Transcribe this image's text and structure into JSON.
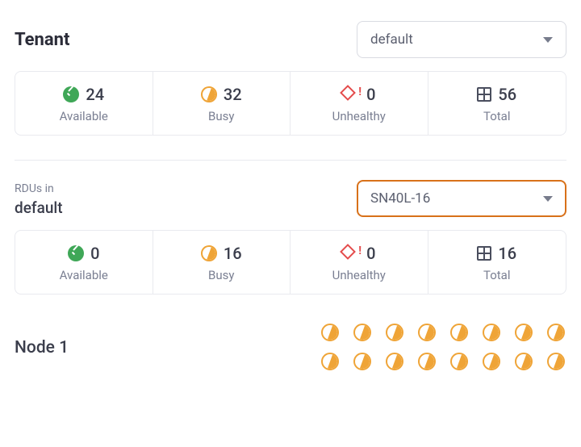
{
  "tenant": {
    "title": "Tenant",
    "selected": "default"
  },
  "stats_top": {
    "available": {
      "label": "Available",
      "value": "24"
    },
    "busy": {
      "label": "Busy",
      "value": "32"
    },
    "unhealthy": {
      "label": "Unhealthy",
      "value": "0"
    },
    "total": {
      "label": "Total",
      "value": "56"
    }
  },
  "rdu": {
    "pre": "RDUs in",
    "tenant": "default",
    "selected": "SN40L-16"
  },
  "stats_rdu": {
    "available": {
      "label": "Available",
      "value": "0"
    },
    "busy": {
      "label": "Busy",
      "value": "16"
    },
    "unhealthy": {
      "label": "Unhealthy",
      "value": "0"
    },
    "total": {
      "label": "Total",
      "value": "16"
    }
  },
  "node": {
    "title": "Node 1",
    "busy_count": 16
  },
  "colors": {
    "available": "#3fa757",
    "busy": "#efa437",
    "unhealthy": "#e44c4c",
    "total": "#4a4e5e",
    "highlight_border": "#d8711a",
    "border": "#e9eaef",
    "text": "#3b3e4c",
    "muted": "#7a7f92"
  }
}
